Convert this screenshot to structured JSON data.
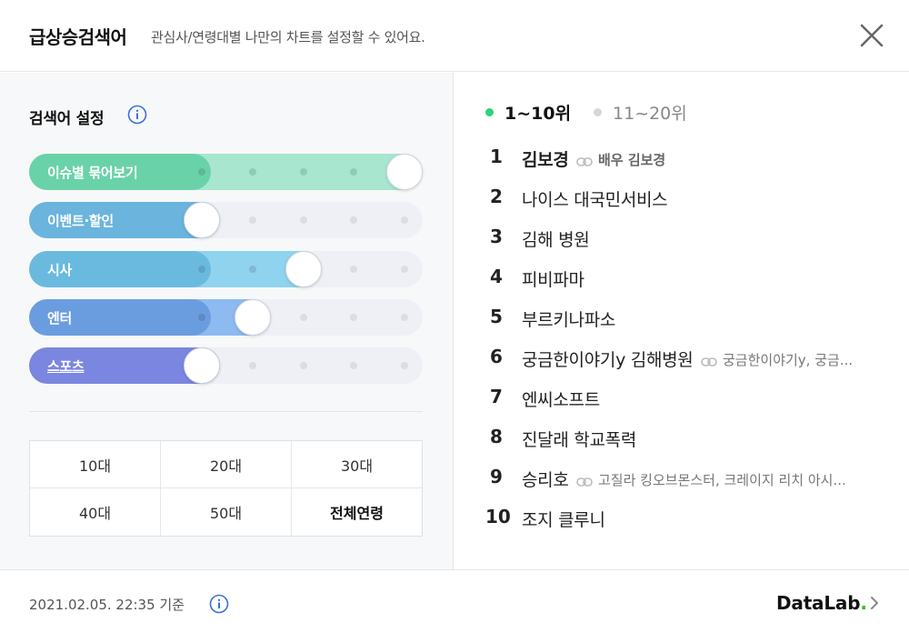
{
  "header": {
    "title": "급상승검색어",
    "subtitle": "관심사/연령대별 나만의 차트를 설정할 수 있어요.",
    "close_icon": "close-icon"
  },
  "settings": {
    "title": "검색어 설정",
    "info_icon": "info-icon",
    "sliders": [
      {
        "label": "이슈별 묶어보기",
        "level": 5,
        "max": 5,
        "color": "#6ad2a8",
        "soft_color": "#a8e6cf"
      },
      {
        "label": "이벤트·할인",
        "level": 1,
        "max": 5,
        "color": "#6ab4dd",
        "soft_color": "#a9d7f0"
      },
      {
        "label": "시사",
        "level": 3,
        "max": 5,
        "color": "#6abadf",
        "soft_color": "#8fd3ee"
      },
      {
        "label": "엔터",
        "level": 2,
        "max": 5,
        "color": "#6a9de0",
        "soft_color": "#8dbaf0"
      },
      {
        "label": "스포츠",
        "level": 1,
        "max": 5,
        "color": "#7b86e0",
        "soft_color": "#a0aaf0"
      }
    ],
    "ages": [
      "10대",
      "20대",
      "30대",
      "40대",
      "50대",
      "전체연령"
    ],
    "selected_age": "전체연령"
  },
  "ranking": {
    "tabs": [
      {
        "label": "1~10위",
        "active": true,
        "bullet_color": "#2ed27a"
      },
      {
        "label": "11~20위",
        "active": false,
        "bullet_color": "#d5d7db"
      }
    ],
    "items": [
      {
        "rank": "1",
        "keyword": "김보경",
        "related": "배우 김보경"
      },
      {
        "rank": "2",
        "keyword": "나이스 대국민서비스",
        "related": ""
      },
      {
        "rank": "3",
        "keyword": "김해 병원",
        "related": ""
      },
      {
        "rank": "4",
        "keyword": "피비파마",
        "related": ""
      },
      {
        "rank": "5",
        "keyword": "부르키나파소",
        "related": ""
      },
      {
        "rank": "6",
        "keyword": "궁금한이야기y 김해병원",
        "related": "궁금한이야기y, 궁금..."
      },
      {
        "rank": "7",
        "keyword": "엔씨소프트",
        "related": ""
      },
      {
        "rank": "8",
        "keyword": "진달래 학교폭력",
        "related": ""
      },
      {
        "rank": "9",
        "keyword": "승리호",
        "related": "고질라 킹오브몬스터, 크레이지 리치 아시..."
      },
      {
        "rank": "10",
        "keyword": "조지 클루니",
        "related": ""
      }
    ]
  },
  "footer": {
    "timestamp": "2021.02.05. 22:35 기준",
    "brand_text": "DataLab",
    "brand_dot": ".",
    "brand_accent_color": "#1ec800"
  }
}
